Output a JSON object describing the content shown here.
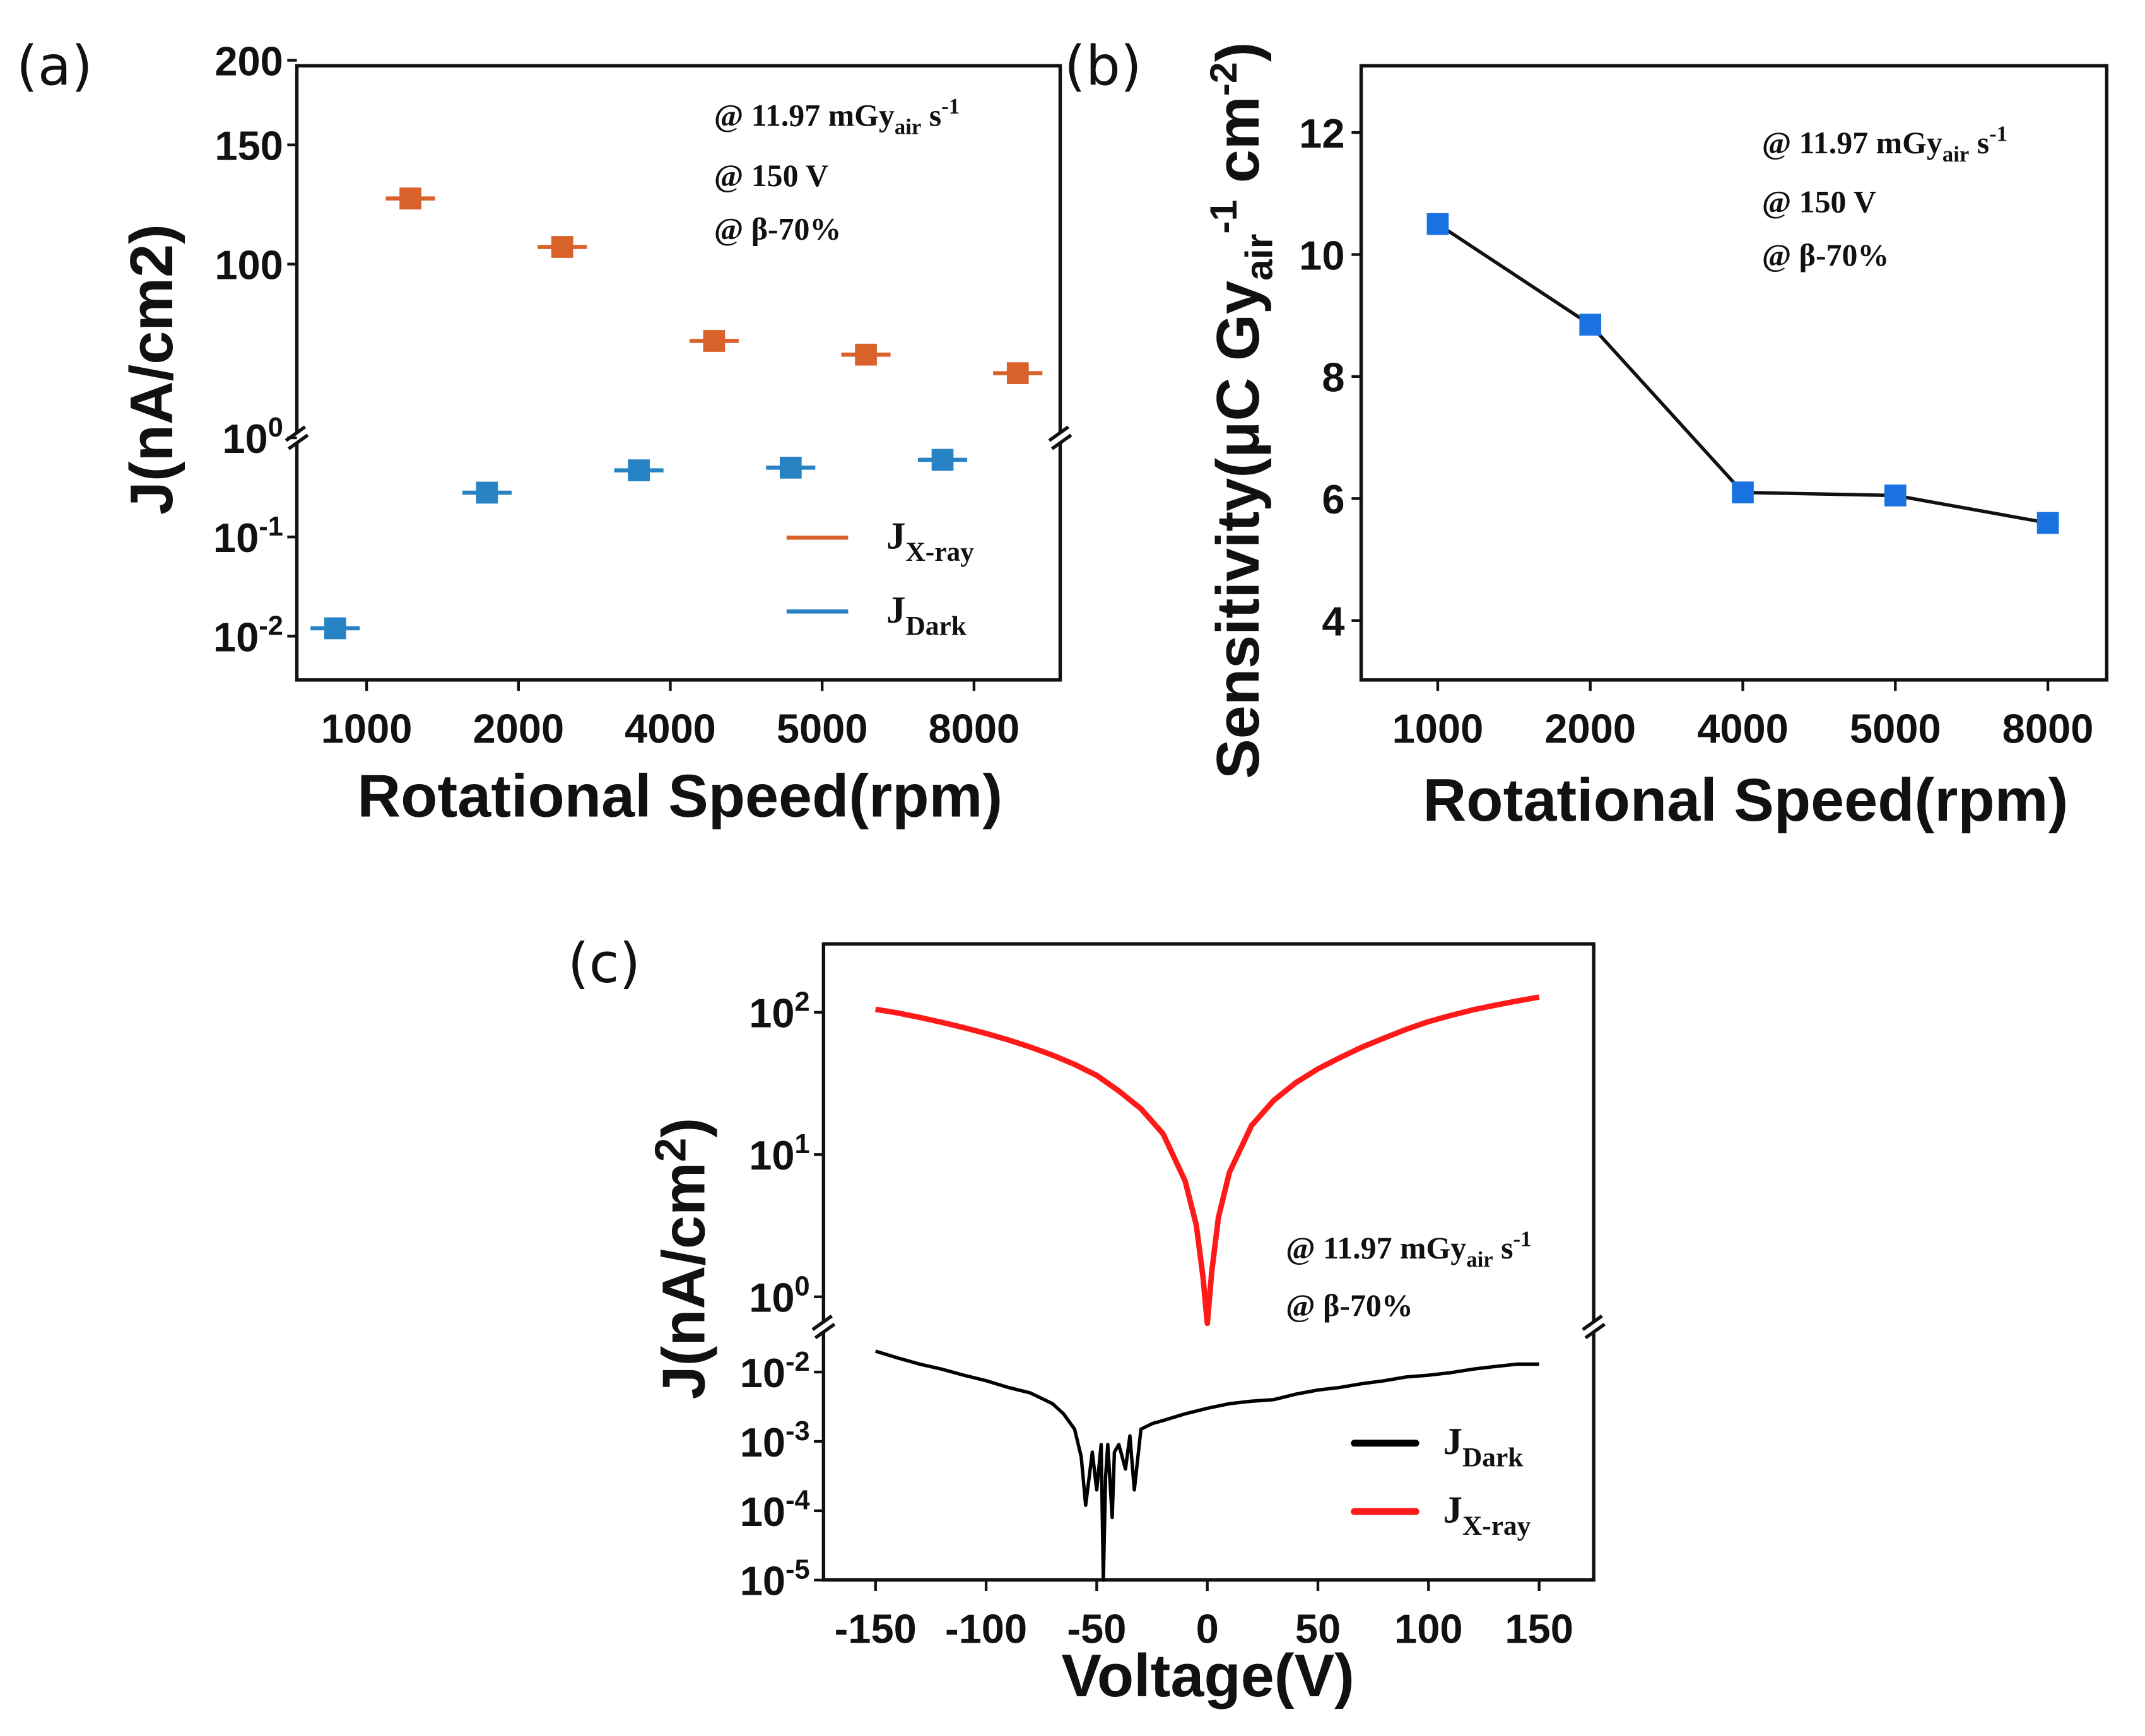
{
  "chart_data": [
    {
      "panel": "(a)",
      "type": "scatter",
      "xlabel": "Rotational Speed(rpm)",
      "ylabel": {
        "main": "J(nA/cm",
        "sup": "2",
        "end": ")"
      },
      "categories": [
        "1000",
        "2000",
        "4000",
        "5000",
        "8000"
      ],
      "y_scale": "broken-log",
      "ylim_upper": [
        55,
        200
      ],
      "ylim_lower": [
        0.0036,
        1
      ],
      "yticks_upper": [
        "200",
        "150",
        "100"
      ],
      "yticks_lower": [
        {
          "base": "10",
          "exp": "0",
          "v": 1
        },
        {
          "base": "10",
          "exp": "-1",
          "v": 0.1
        },
        {
          "base": "10",
          "exp": "-2",
          "v": 0.01
        }
      ],
      "series": [
        {
          "name": "J",
          "sub": "X-ray",
          "color": "#d9622b",
          "values": [
            125,
            106,
            77,
            73.5,
            69
          ]
        },
        {
          "name": "J",
          "sub": "Dark",
          "color": "#2783c4",
          "values": [
            0.012,
            0.28,
            0.47,
            0.5,
            0.6
          ]
        }
      ],
      "annotations": [
        {
          "pre": "@ 11.97 mGy",
          "sub": "air",
          "mid": " s",
          "sup": "-1"
        },
        {
          "pre": "@ 150 V"
        },
        {
          "pre": "@ β-70%"
        }
      ],
      "legend": "bottom-right"
    },
    {
      "panel": "(b)",
      "type": "line",
      "xlabel": "Rotational Speed(rpm)",
      "ylabel": {
        "main": "Sensitivity(μC Gy",
        "sub": "air",
        "sup": "-1",
        "mid": " cm",
        "sup2": "-2",
        "end": ")"
      },
      "categories": [
        "1000",
        "2000",
        "4000",
        "5000",
        "8000"
      ],
      "values": [
        10.5,
        8.85,
        6.1,
        6.05,
        5.6
      ],
      "ylim": [
        3.1,
        13.1
      ],
      "yticks": [
        "4",
        "6",
        "8",
        "10",
        "12"
      ],
      "marker_color": "#1a73e0",
      "line_color": "#111111",
      "annotations": [
        {
          "pre": "@ 11.97 mGy",
          "sub": "air",
          "mid": " s",
          "sup": "-1"
        },
        {
          "pre": "@ 150 V"
        },
        {
          "pre": "@ β-70%"
        }
      ]
    },
    {
      "panel": "(c)",
      "type": "line",
      "xlabel": "Voltage(V)",
      "ylabel": {
        "main": "J(nA/cm",
        "sup": "2",
        "end": ")"
      },
      "xlim": [
        -173,
        174
      ],
      "xticks": [
        "-150",
        "-100",
        "-50",
        "0",
        "50",
        "100",
        "150"
      ],
      "y_scale": "broken-log",
      "ylim_upper": [
        0.65,
        300
      ],
      "ylim_lower": [
        1e-05,
        0.035
      ],
      "yticks_upper": [
        {
          "base": "10",
          "exp": "2",
          "v": 100
        },
        {
          "base": "10",
          "exp": "1",
          "v": 10
        },
        {
          "base": "10",
          "exp": "0",
          "v": 1
        }
      ],
      "yticks_lower": [
        {
          "base": "10",
          "exp": "-2",
          "v": 0.01
        },
        {
          "base": "10",
          "exp": "-3",
          "v": 0.001
        },
        {
          "base": "10",
          "exp": "-4",
          "v": 0.0001
        },
        {
          "base": "10",
          "exp": "-5",
          "v": 1e-05
        }
      ],
      "series": [
        {
          "name": "J",
          "sub": "Dark",
          "color": "#000000",
          "x": [
            -150,
            -140,
            -130,
            -120,
            -110,
            -100,
            -90,
            -80,
            -70,
            -65,
            -60,
            -57,
            -55,
            -52,
            -50,
            -48,
            -47,
            -46,
            -45,
            -43,
            -42,
            -40,
            -37,
            -35,
            -33,
            -30,
            -25,
            -20,
            -10,
            0,
            10,
            20,
            30,
            40,
            50,
            60,
            70,
            80,
            90,
            100,
            110,
            120,
            130,
            140,
            150
          ],
          "y": [
            0.02,
            0.016,
            0.013,
            0.011,
            0.009,
            0.0075,
            0.006,
            0.005,
            0.0035,
            0.0025,
            0.0015,
            0.0006,
            0.00012,
            0.0007,
            0.0002,
            0.0009,
            1e-05,
            0.0003,
            0.0009,
            8e-05,
            0.0007,
            0.0009,
            0.0004,
            0.0012,
            0.0002,
            0.0015,
            0.0018,
            0.002,
            0.0025,
            0.003,
            0.0035,
            0.0038,
            0.004,
            0.0048,
            0.0055,
            0.006,
            0.0068,
            0.0075,
            0.0085,
            0.009,
            0.0098,
            0.011,
            0.012,
            0.013,
            0.013
          ]
        },
        {
          "name": "J",
          "sub": "X-ray",
          "color": "#ff1a1a",
          "x": [
            -150,
            -140,
            -130,
            -120,
            -110,
            -100,
            -90,
            -80,
            -70,
            -60,
            -50,
            -40,
            -30,
            -20,
            -10,
            -5,
            -2,
            0,
            2,
            5,
            10,
            20,
            30,
            40,
            50,
            60,
            70,
            80,
            90,
            100,
            110,
            120,
            130,
            140,
            150
          ],
          "y": [
            105,
            99,
            92,
            85,
            78,
            71,
            64,
            57,
            50,
            43,
            36,
            28,
            21,
            14,
            6.5,
            3.2,
            1.4,
            0.65,
            1.5,
            3.6,
            7.5,
            16,
            24,
            32,
            40,
            48,
            57,
            66,
            76,
            86,
            95,
            104,
            112,
            120,
            128
          ]
        }
      ],
      "annotations": [
        {
          "pre": "@ 11.97 mGy",
          "sub": "air",
          "mid": " s",
          "sup": "-1"
        },
        {
          "pre": "@ β-70%"
        }
      ],
      "legend": "bottom-right"
    }
  ]
}
